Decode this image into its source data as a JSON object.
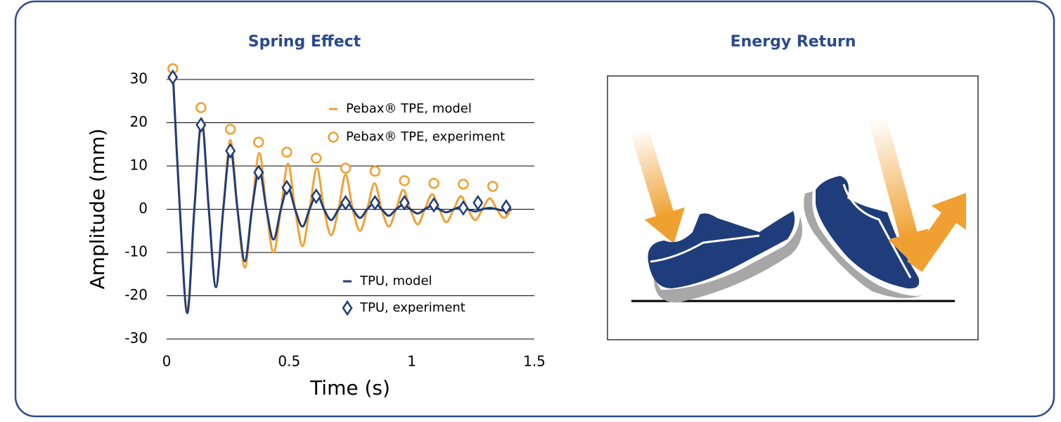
{
  "chart_data": {
    "type": "line",
    "title": "Spring Effect",
    "x_label": "Time (s)",
    "y_label": "Amplitude (mm)",
    "xlim": [
      0,
      1.5
    ],
    "xticks": [
      0,
      0.5,
      1,
      1.5
    ],
    "ylim": [
      -30,
      30
    ],
    "yticks": [
      -30,
      -20,
      -10,
      0,
      10,
      20,
      30
    ],
    "grid": true,
    "series": [
      {
        "name": "Pebax® TPE, model",
        "type": "line",
        "color": "#f0a030",
        "x": [
          0.025,
          0.054,
          0.084,
          0.113,
          0.143,
          0.172,
          0.201,
          0.231,
          0.26,
          0.289,
          0.319,
          0.348,
          0.378,
          0.407,
          0.436,
          0.466,
          0.495,
          0.524,
          0.554,
          0.583,
          0.613,
          0.642,
          0.671,
          0.701,
          0.73,
          0.759,
          0.789,
          0.818,
          0.848,
          0.877,
          0.906,
          0.936,
          0.965,
          0.994,
          1.024,
          1.053,
          1.083,
          1.112,
          1.141,
          1.171,
          1.2,
          1.229,
          1.259,
          1.288,
          1.318,
          1.347,
          1.376,
          1.406
        ],
        "values": [
          32,
          0,
          -23,
          0,
          21,
          0,
          -18,
          0,
          16,
          0,
          -13.5,
          0,
          13,
          0,
          -10,
          0,
          10.5,
          0,
          -8.5,
          0,
          9.5,
          0,
          -6,
          0,
          8,
          0,
          -5,
          0,
          6,
          0,
          -4,
          0,
          4.5,
          0,
          -3.5,
          0,
          3.5,
          0,
          -3,
          0,
          3,
          0,
          -2.5,
          0,
          2.5,
          0,
          -2,
          0
        ]
      },
      {
        "name": "TPU, model",
        "type": "line",
        "color": "#1f3d7a",
        "x": [
          0.025,
          0.054,
          0.084,
          0.113,
          0.143,
          0.172,
          0.201,
          0.231,
          0.26,
          0.289,
          0.319,
          0.348,
          0.378,
          0.407,
          0.436,
          0.466,
          0.495,
          0.524,
          0.554,
          0.583,
          0.613,
          0.642,
          0.671,
          0.701,
          0.73,
          0.759,
          0.789,
          0.818,
          0.848,
          0.877,
          0.906,
          0.936,
          0.965,
          0.994,
          1.024,
          1.053,
          1.083,
          1.112,
          1.141,
          1.171,
          1.2,
          1.229,
          1.259,
          1.288,
          1.318,
          1.347,
          1.376,
          1.406
        ],
        "values": [
          32,
          0,
          -24,
          0,
          20,
          0,
          -18,
          0,
          14,
          0,
          -12,
          0,
          9,
          0,
          -7,
          0,
          5,
          0,
          -4,
          0,
          3.5,
          0,
          -2.5,
          0,
          2,
          0,
          -2,
          0,
          1.5,
          0,
          -1.5,
          0,
          1,
          0,
          -1,
          0,
          0.8,
          0,
          -0.7,
          0,
          0.5,
          0,
          -0.5,
          0,
          0.3,
          0,
          -0.3,
          0
        ]
      },
      {
        "name": "Pebax® TPE, experiment",
        "type": "scatter",
        "marker": "circle",
        "color": "#f0a030",
        "x": [
          0.025,
          0.14,
          0.26,
          0.375,
          0.49,
          0.61,
          0.73,
          0.85,
          0.97,
          1.09,
          1.21,
          1.33
        ],
        "values": [
          32.5,
          23.5,
          18.5,
          15.5,
          13.2,
          11.8,
          9.5,
          8.8,
          6.6,
          6,
          5.8,
          5.3
        ]
      },
      {
        "name": "TPU, experiment",
        "type": "scatter",
        "marker": "diamond",
        "color": "#1f3d7a",
        "x": [
          0.025,
          0.14,
          0.26,
          0.375,
          0.49,
          0.61,
          0.73,
          0.85,
          0.97,
          1.09,
          1.21,
          1.27,
          1.385
        ],
        "values": [
          30.5,
          19.5,
          13.5,
          8.5,
          5,
          3,
          1.5,
          1.5,
          1.5,
          1,
          0.3,
          1.5,
          0.5
        ]
      }
    ]
  },
  "illustration": {
    "title": "Energy Return"
  }
}
